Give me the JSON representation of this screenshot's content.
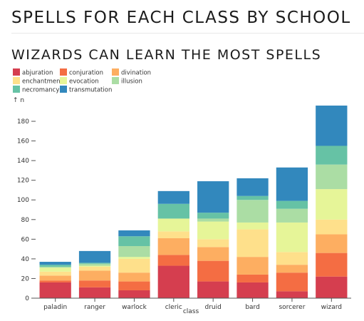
{
  "page": {
    "heading": "SPELLS FOR EACH CLASS BY SCHOOL"
  },
  "chart_data": {
    "type": "bar",
    "stacked": true,
    "title": "WIZARDS CAN LEARN THE MOST SPELLS",
    "xlabel": "class",
    "ylabel": "↑ n",
    "ylim": [
      0,
      196
    ],
    "yticks": [
      0,
      20,
      40,
      60,
      80,
      100,
      120,
      140,
      160,
      180
    ],
    "grid": false,
    "legend_position": "top-left",
    "categories": [
      "paladin",
      "ranger",
      "warlock",
      "cleric",
      "druid",
      "bard",
      "sorcerer",
      "wizard"
    ],
    "series": [
      {
        "name": "abjuration",
        "color": "#d53e4f",
        "values": [
          16,
          11,
          8,
          33,
          17,
          16,
          7,
          22
        ]
      },
      {
        "name": "conjuration",
        "color": "#f46d43",
        "values": [
          2,
          7,
          9,
          11,
          21,
          8,
          19,
          24
        ]
      },
      {
        "name": "divination",
        "color": "#fdae61",
        "values": [
          5,
          10,
          9,
          17,
          14,
          18,
          8,
          19
        ]
      },
      {
        "name": "enchantment",
        "color": "#fee08b",
        "values": [
          4,
          4,
          14,
          7,
          8,
          28,
          13,
          15
        ]
      },
      {
        "name": "evocation",
        "color": "#e6f598",
        "values": [
          4,
          1,
          2,
          13,
          18,
          7,
          30,
          31
        ]
      },
      {
        "name": "illusion",
        "color": "#abdda4",
        "values": [
          1,
          2,
          11,
          0,
          3,
          23,
          14,
          25
        ]
      },
      {
        "name": "necromancy",
        "color": "#66c2a5",
        "values": [
          2,
          1,
          10,
          15,
          6,
          4,
          8,
          19
        ]
      },
      {
        "name": "transmutation",
        "color": "#3288bd",
        "values": [
          3,
          12,
          6,
          13,
          32,
          18,
          34,
          41
        ]
      }
    ]
  }
}
